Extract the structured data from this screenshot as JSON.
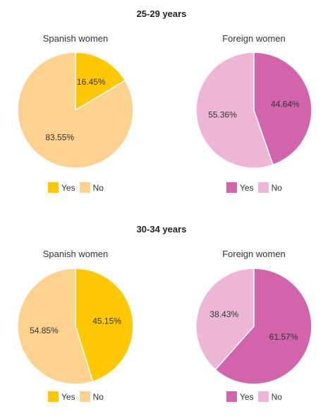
{
  "chart_data": [
    {
      "type": "pie",
      "section": "25-29 years",
      "title": "Spanish women",
      "slices": [
        {
          "label": "Yes",
          "value": 16.45,
          "display": "16.45%",
          "color": "#FFC800"
        },
        {
          "label": "No",
          "value": 83.55,
          "display": "83.55%",
          "color": "#FDD28F"
        }
      ],
      "legend": [
        "Yes",
        "No"
      ]
    },
    {
      "type": "pie",
      "section": "25-29 years",
      "title": "Foreign women",
      "slices": [
        {
          "label": "Yes",
          "value": 44.64,
          "display": "44.64%",
          "color": "#D164AA"
        },
        {
          "label": "No",
          "value": 55.36,
          "display": "55.36%",
          "color": "#EDB6D6"
        }
      ],
      "legend": [
        "Yes",
        "No"
      ]
    },
    {
      "type": "pie",
      "section": "30-34 years",
      "title": "Spanish women",
      "slices": [
        {
          "label": "Yes",
          "value": 45.15,
          "display": "45.15%",
          "color": "#FFC800"
        },
        {
          "label": "No",
          "value": 54.85,
          "display": "54.85%",
          "color": "#FDD28F"
        }
      ],
      "legend": [
        "Yes",
        "No"
      ]
    },
    {
      "type": "pie",
      "section": "30-34 years",
      "title": "Foreign women",
      "slices": [
        {
          "label": "Yes",
          "value": 61.57,
          "display": "61.57%",
          "color": "#D164AA"
        },
        {
          "label": "No",
          "value": 38.43,
          "display": "38.43%",
          "color": "#EDB6D6"
        }
      ],
      "legend": [
        "Yes",
        "No"
      ]
    }
  ],
  "sections": {
    "top": "25-29 years",
    "bottom": "30-34 years"
  },
  "titles": {
    "c0": "Spanish women",
    "c1": "Foreign women",
    "c2": "Spanish women",
    "c3": "Foreign women"
  },
  "legend": {
    "yes": "Yes",
    "no": "No"
  }
}
